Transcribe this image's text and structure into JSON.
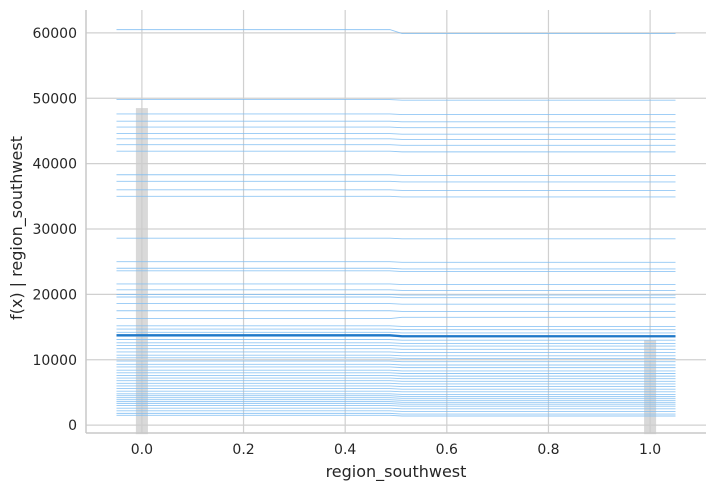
{
  "chart_data": {
    "type": "line",
    "title": "",
    "xlabel": "region_southwest",
    "ylabel": "f(x) | region_southwest",
    "xlim": [
      -0.11,
      1.11
    ],
    "ylim": [
      -1200,
      63500
    ],
    "xticks": [
      "0.0",
      "0.2",
      "0.4",
      "0.6",
      "0.8",
      "1.0"
    ],
    "xtick_values": [
      0,
      0.2,
      0.4,
      0.6,
      0.8,
      1.0
    ],
    "yticks": [
      "0",
      "10000",
      "20000",
      "30000",
      "40000",
      "50000",
      "60000"
    ],
    "ytick_values": [
      0,
      10000,
      20000,
      30000,
      40000,
      50000,
      60000
    ],
    "grid": true,
    "x_grid_points": [
      -0.05,
      0.5,
      1.05
    ],
    "ice_curves_left": [
      60500,
      49800,
      47600,
      46500,
      45600,
      44600,
      43800,
      42900,
      41900,
      38300,
      37300,
      36000,
      35000,
      28600,
      25000,
      24000,
      23600,
      21600,
      20700,
      20000,
      19600,
      18600,
      17500,
      16300,
      15200,
      14700,
      14200,
      13600,
      13100,
      12600,
      12200,
      11700,
      11200,
      10700,
      10300,
      9800,
      9300,
      8900,
      8400,
      8000,
      7600,
      7200,
      6800,
      6400,
      6000,
      5600,
      5200,
      4800,
      4500,
      4200,
      3900,
      3600,
      3300,
      3000,
      2600,
      2200,
      1800,
      1500
    ],
    "ice_curves_right": [
      59900,
      49700,
      47500,
      46400,
      45500,
      44500,
      43700,
      42800,
      41800,
      38200,
      37200,
      35900,
      34900,
      28500,
      24900,
      23900,
      23500,
      21500,
      20600,
      19900,
      19500,
      18500,
      17400,
      16500,
      15100,
      14600,
      14100,
      13500,
      13000,
      12500,
      12100,
      11600,
      11100,
      10600,
      10200,
      9700,
      9200,
      8800,
      8300,
      7900,
      7500,
      7100,
      6700,
      6300,
      5900,
      5500,
      5100,
      4700,
      4400,
      4100,
      3800,
      3500,
      3200,
      2900,
      2500,
      2100,
      1700,
      1400
    ],
    "pdp_mean": [
      13750,
      13600
    ],
    "histogram": [
      {
        "x": 0.0,
        "height": 48500
      },
      {
        "x": 1.0,
        "height": 13000
      }
    ],
    "colors": {
      "ice": "#7fbdf2",
      "pdp": "#1f78c8",
      "hist": "#cccccc",
      "grid": "#d0d0d0",
      "spine": "#c8c8c8"
    }
  }
}
